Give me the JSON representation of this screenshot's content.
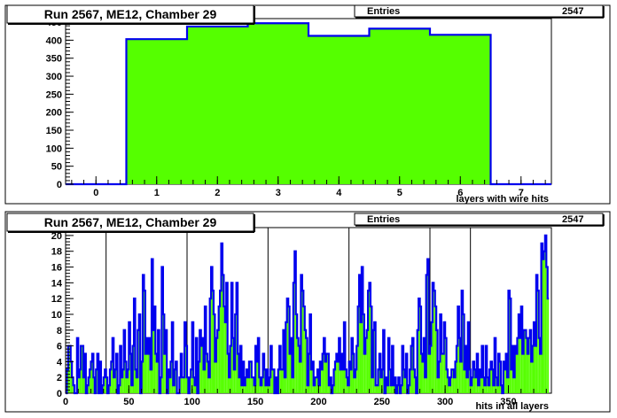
{
  "colors": {
    "fill": "#55ff00",
    "line": "#0000ee",
    "pad": "#ffffff",
    "frame": "#000000",
    "bg": "#ffffff"
  },
  "chart_data": [
    {
      "type": "bar",
      "title": "Run 2567, ME12, Chamber 29",
      "stats": {
        "label": "Entries",
        "value": "2547"
      },
      "xlabel": "layers with wire hits",
      "ylabel": "",
      "xlim": [
        -0.5,
        7.5
      ],
      "ylim": [
        0,
        460
      ],
      "xticks": [
        0,
        1,
        2,
        3,
        4,
        5,
        6,
        7
      ],
      "yticks": [
        0,
        50,
        100,
        150,
        200,
        250,
        300,
        350,
        400,
        450
      ],
      "bin_edges_start": -0.5,
      "bin_width": 1,
      "values": [
        0,
        403,
        438,
        447,
        412,
        432,
        415,
        0
      ]
    },
    {
      "type": "bar",
      "title": "Run 2567, ME12, Chamber 29",
      "stats": {
        "label": "Entries",
        "value": "2547"
      },
      "xlabel": "hits in all layers",
      "ylabel": "",
      "xlim": [
        0,
        384
      ],
      "ylim": [
        0,
        21
      ],
      "xticks": [
        0,
        50,
        100,
        150,
        200,
        250,
        300,
        350
      ],
      "yticks": [
        0,
        2,
        4,
        6,
        8,
        10,
        12,
        14,
        16,
        18,
        20
      ],
      "vlines": [
        32,
        96,
        160,
        224,
        288,
        320
      ],
      "bin_edges_start": 0,
      "bin_width": 1,
      "values": [
        0,
        3,
        6,
        6,
        4,
        2,
        1,
        0,
        0,
        7,
        2,
        3,
        6,
        6,
        2,
        5,
        0,
        1,
        2,
        3,
        4,
        5,
        2,
        0,
        3,
        5,
        0,
        4,
        0,
        1,
        2,
        3,
        2,
        0,
        1,
        3,
        4,
        7,
        2,
        3,
        5,
        0,
        1,
        6,
        2,
        3,
        8,
        4,
        2,
        3,
        9,
        5,
        1,
        6,
        12,
        3,
        2,
        8,
        10,
        0,
        4,
        15,
        13,
        5,
        7,
        5,
        7,
        3,
        17,
        8,
        11,
        5,
        4,
        8,
        0,
        2,
        16,
        10,
        5,
        8,
        0,
        3,
        2,
        4,
        9,
        1,
        3,
        4,
        0,
        0,
        2,
        5,
        2,
        2,
        9,
        6,
        2,
        0,
        2,
        3,
        9,
        2,
        1,
        7,
        0,
        4,
        8,
        6,
        7,
        3,
        11,
        5,
        4,
        2,
        12,
        16,
        13,
        10,
        4,
        7,
        8,
        11,
        13,
        19,
        15,
        11,
        9,
        14,
        5,
        2,
        6,
        14,
        7,
        3,
        10,
        14,
        5,
        2,
        6,
        1,
        4,
        1,
        2,
        3,
        2,
        4,
        4,
        2,
        2,
        1,
        6,
        4,
        7,
        2,
        1,
        2,
        5,
        3,
        1,
        3,
        1,
        2,
        6,
        3,
        3,
        0,
        2,
        0,
        3,
        6,
        3,
        3,
        8,
        2,
        9,
        12,
        11,
        5,
        7,
        2,
        14,
        18,
        10,
        7,
        6,
        4,
        15,
        13,
        11,
        8,
        7,
        1,
        5,
        10,
        3,
        4,
        1,
        2,
        2,
        3,
        1,
        4,
        3,
        5,
        7,
        4,
        5,
        5,
        1,
        2,
        0,
        1,
        3,
        4,
        5,
        4,
        7,
        3,
        5,
        3,
        9,
        3,
        2,
        1,
        4,
        3,
        7,
        5,
        2,
        3,
        6,
        11,
        15,
        9,
        16,
        10,
        5,
        7,
        8,
        13,
        14,
        11,
        2,
        8,
        9,
        1,
        1,
        3,
        5,
        2,
        3,
        8,
        0,
        2,
        1,
        7,
        3,
        1,
        6,
        1,
        2,
        0,
        1,
        2,
        0,
        1,
        6,
        3,
        2,
        5,
        0,
        1,
        3,
        6,
        7,
        3,
        2,
        0,
        8,
        12,
        11,
        5,
        4,
        7,
        2,
        15,
        17,
        5,
        6,
        9,
        14,
        13,
        11,
        8,
        2,
        4,
        10,
        5,
        5,
        9,
        7,
        3,
        2,
        1,
        2,
        3,
        3,
        2,
        4,
        6,
        11,
        7,
        4,
        13,
        10,
        3,
        6,
        2,
        9,
        3,
        1,
        2,
        4,
        3,
        2,
        5,
        1,
        3,
        2,
        6,
        2,
        1,
        6,
        2,
        1,
        3,
        4,
        3,
        1,
        7,
        2,
        1,
        5,
        4,
        1,
        0,
        4,
        3,
        5,
        2,
        13,
        12,
        3,
        6,
        2,
        6,
        5,
        7,
        10,
        7,
        11,
        5,
        8,
        8,
        7,
        5,
        7,
        8,
        4,
        6,
        9,
        6,
        15,
        13,
        7,
        5,
        19,
        17,
        18,
        20,
        16,
        12
      ]
    }
  ]
}
